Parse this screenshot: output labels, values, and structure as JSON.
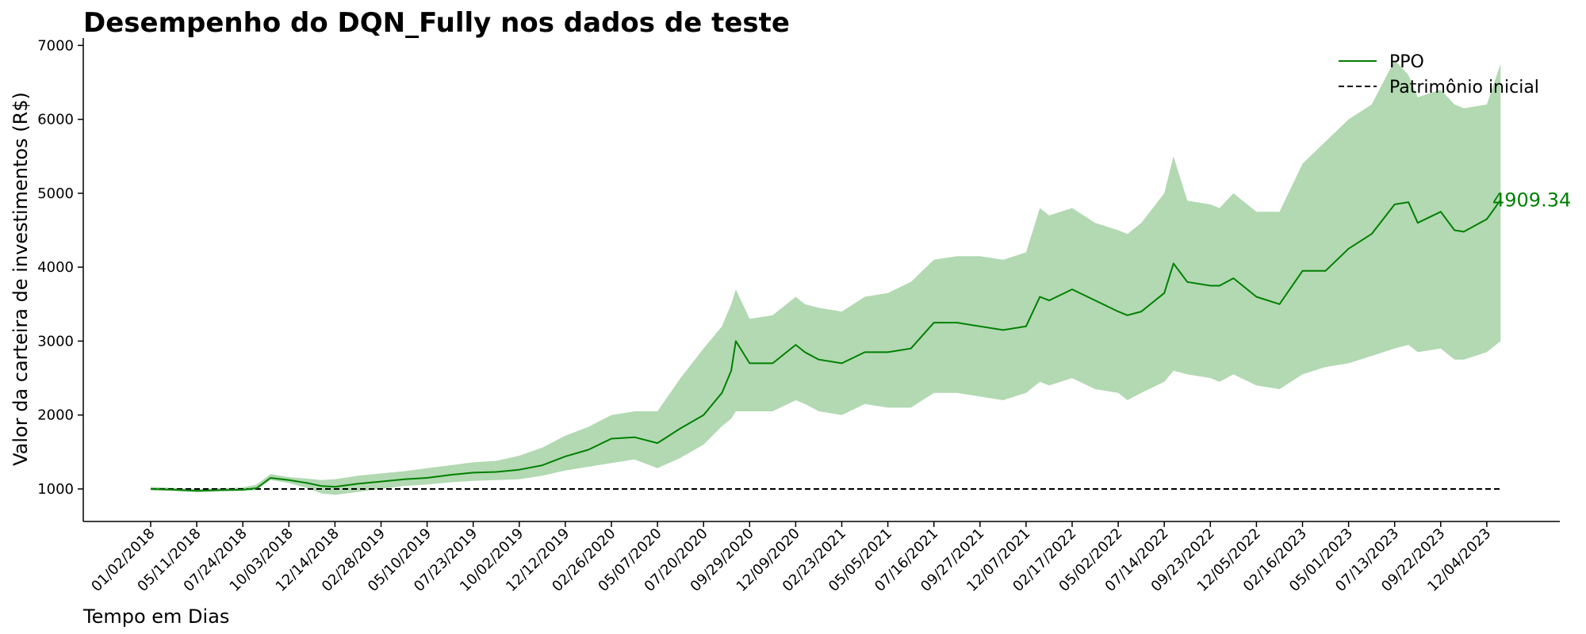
{
  "chart_data": {
    "type": "line",
    "title": "Desempenho do DQN_Fully nos dados de teste",
    "xlabel": "Tempo em Dias",
    "ylabel": "Valor da carteira de investimentos (R$)",
    "ylim": [
      560,
      7100
    ],
    "yticks": [
      1000,
      2000,
      3000,
      4000,
      5000,
      6000,
      7000
    ],
    "xticks": [
      "01/02/2018",
      "05/11/2018",
      "07/24/2018",
      "10/03/2018",
      "12/14/2018",
      "02/28/2019",
      "05/10/2019",
      "07/23/2019",
      "10/02/2019",
      "12/12/2019",
      "02/26/2020",
      "05/07/2020",
      "07/20/2020",
      "09/29/2020",
      "12/09/2020",
      "02/23/2021",
      "05/05/2021",
      "07/16/2021",
      "09/27/2021",
      "12/07/2021",
      "02/17/2022",
      "05/02/2022",
      "07/14/2022",
      "09/23/2022",
      "12/05/2022",
      "02/16/2023",
      "05/01/2023",
      "07/13/2023",
      "09/22/2023",
      "12/04/2023"
    ],
    "grid": false,
    "legend_position": "top-right",
    "final_value_label": "4909.34",
    "colors": {
      "series": "#008000",
      "band": "#b2d9b2",
      "baseline": "#000000"
    },
    "series": [
      {
        "name": "PPO",
        "x_tick_index": [
          0,
          0.5,
          1,
          1.5,
          2,
          2.3,
          2.6,
          3,
          3.4,
          3.7,
          4,
          4.5,
          5,
          5.5,
          6,
          6.5,
          7,
          7.5,
          8,
          8.5,
          9,
          9.5,
          10,
          10.5,
          11,
          11.5,
          12,
          12.4,
          12.6,
          12.7,
          13,
          13.5,
          14,
          14.2,
          14.5,
          15,
          15.5,
          16,
          16.5,
          17,
          17.5,
          18,
          18.5,
          19,
          19.3,
          19.5,
          20,
          20.5,
          21,
          21.2,
          21.5,
          22,
          22.2,
          22.5,
          23,
          23.2,
          23.5,
          24,
          24.5,
          25,
          25.5,
          26,
          26.5,
          27,
          27.3,
          27.5,
          28,
          28.3,
          28.5,
          29,
          29.3
        ],
        "values": [
          1000,
          990,
          975,
          985,
          990,
          1010,
          1150,
          1120,
          1080,
          1040,
          1030,
          1070,
          1100,
          1130,
          1150,
          1190,
          1220,
          1230,
          1260,
          1320,
          1440,
          1530,
          1680,
          1700,
          1620,
          1820,
          2000,
          2300,
          2600,
          3000,
          2700,
          2700,
          2950,
          2850,
          2750,
          2700,
          2850,
          2850,
          2900,
          3250,
          3250,
          3200,
          3150,
          3200,
          3600,
          3550,
          3700,
          3550,
          3400,
          3350,
          3400,
          3650,
          4050,
          3800,
          3750,
          3750,
          3850,
          3600,
          3500,
          3950,
          3950,
          4250,
          4450,
          4850,
          4880,
          4600,
          4750,
          4500,
          4480,
          4650,
          4909.34
        ],
        "band_upper": [
          1030,
          1015,
          1000,
          1010,
          1020,
          1060,
          1200,
          1160,
          1140,
          1120,
          1130,
          1180,
          1210,
          1240,
          1280,
          1320,
          1360,
          1380,
          1450,
          1560,
          1720,
          1840,
          2000,
          2050,
          2050,
          2500,
          2900,
          3200,
          3500,
          3700,
          3300,
          3350,
          3600,
          3500,
          3450,
          3400,
          3600,
          3650,
          3800,
          4100,
          4150,
          4150,
          4100,
          4200,
          4800,
          4700,
          4800,
          4600,
          4500,
          4450,
          4600,
          5000,
          5500,
          4900,
          4850,
          4800,
          5000,
          4750,
          4750,
          5400,
          5700,
          6000,
          6200,
          6800,
          6600,
          6300,
          6400,
          6200,
          6150,
          6200,
          6750
        ],
        "band_lower": [
          980,
          970,
          955,
          965,
          970,
          985,
          1120,
          1080,
          1010,
          940,
          920,
          960,
          1000,
          1040,
          1060,
          1090,
          1110,
          1120,
          1130,
          1180,
          1250,
          1300,
          1350,
          1400,
          1280,
          1420,
          1600,
          1850,
          1950,
          2050,
          2050,
          2050,
          2200,
          2150,
          2050,
          2000,
          2150,
          2100,
          2100,
          2300,
          2300,
          2250,
          2200,
          2300,
          2450,
          2400,
          2500,
          2350,
          2300,
          2200,
          2300,
          2450,
          2600,
          2550,
          2500,
          2450,
          2550,
          2400,
          2350,
          2550,
          2650,
          2700,
          2800,
          2900,
          2950,
          2850,
          2900,
          2750,
          2750,
          2850,
          3000
        ]
      },
      {
        "name": "Patrimônio inicial",
        "style": "dashed",
        "x_tick_index": [
          0,
          29.3
        ],
        "values": [
          1000,
          1000
        ]
      }
    ]
  }
}
